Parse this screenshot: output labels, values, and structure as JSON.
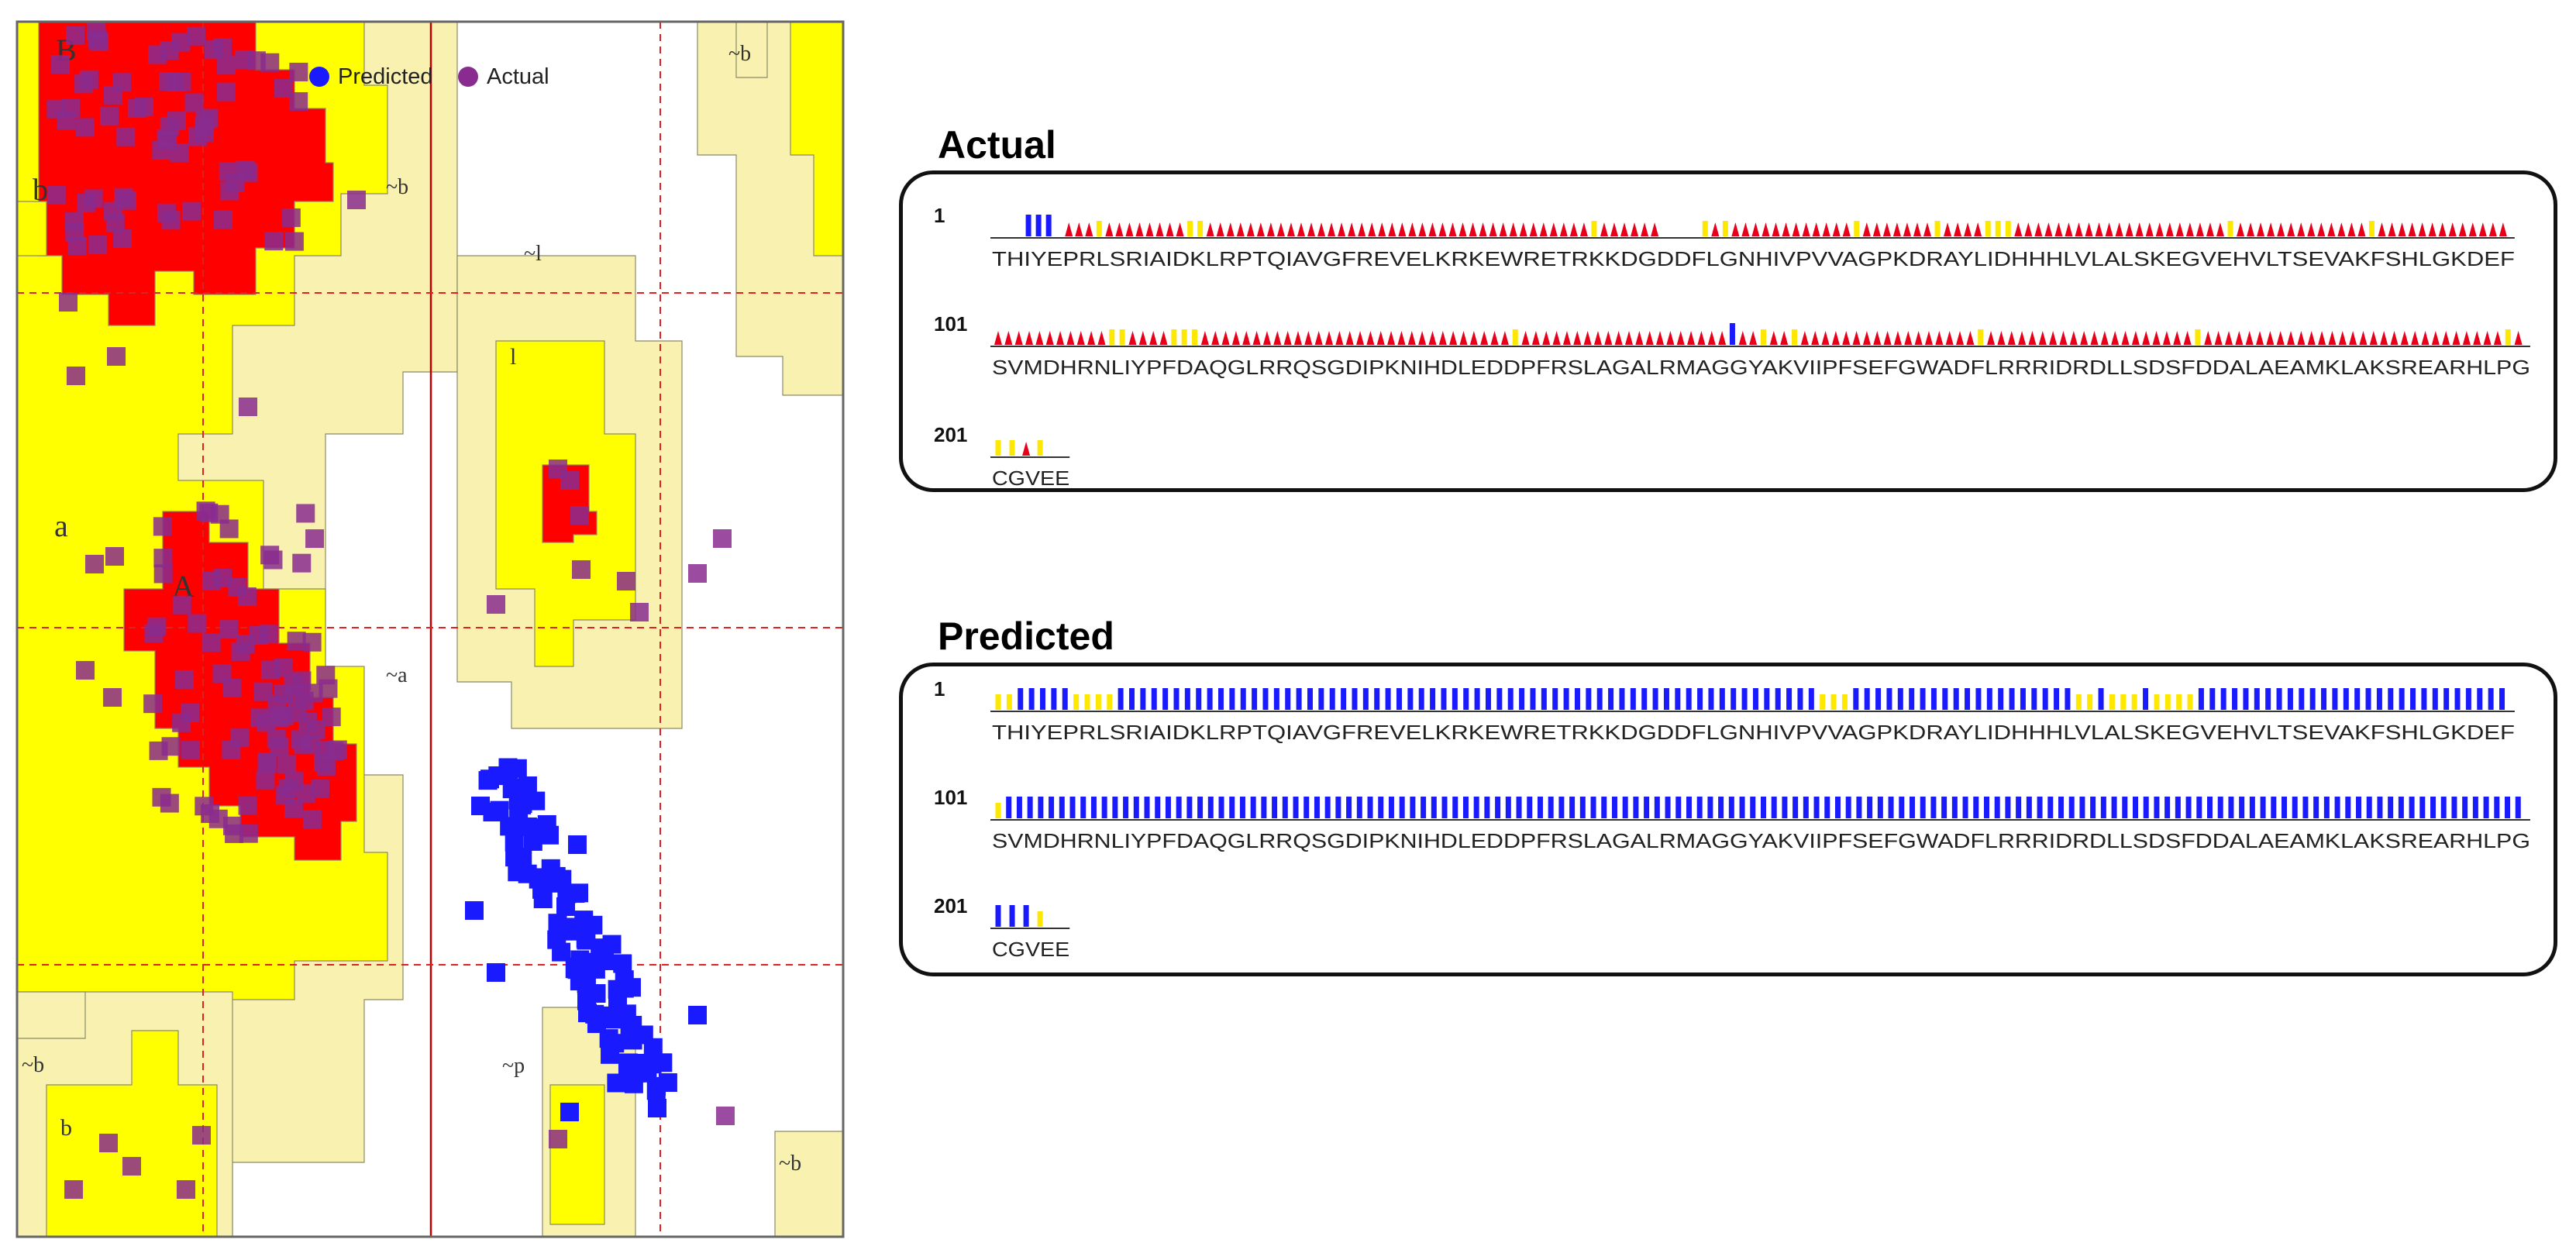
{
  "plot": {
    "legend": [
      {
        "label": "Predicted",
        "color": "#1a1aff"
      },
      {
        "label": "Actual",
        "color": "#8a2b8f"
      }
    ],
    "region_labels": [
      "B",
      "b",
      "~b",
      "~b",
      "~l",
      "l",
      "a",
      "A",
      "~a",
      "~b",
      "b",
      "~p",
      "~b"
    ]
  },
  "colors": {
    "core": "#ff0000",
    "allowed": "#ffff00",
    "generous": "#f8f1b0",
    "predicted": "#1a1aff",
    "actual": "#8a2b8f",
    "helix_bar": "#1a1aff",
    "other_bar": "#ffe800",
    "strand_triangle": "#e8001a"
  },
  "panels": {
    "actual": {
      "title": "Actual",
      "rows": [
        {
          "start": "1",
          "sequence": "THIYEPRLSRIAIDKLRPTQIAVGFREVELKRKEWRETRKKDGDDFLGNHIVPVVAGPKDRAYLIDHHHLVLALSKEGVEHVLTSEVAKFSHLGKDEF",
          "ss": "---HHH-EEEOEEEEEEEEOOEEEEEEEEEEEEEEEEEEEEEEEEEEEEEEEEEEEEEEOEEEEEE----OEOEEEEEEEEEEEEOEEEEEEEOEEEEOOOEEEEEEEEEEEEEEEEEEEEEOEEEEEEEEEEEEEOEEEEEEEEEEEEE"
        },
        {
          "start": "101",
          "sequence": "SVMDHRNLIYPFDAQGLRRQSGDIPKNIHDLEDDPFRSLAGALRMAGGYAKVIIPFSEFGWADFLRRRIDRDLLSDSFDDALAEAMKLAKSREARHLPG",
          "ss": "EEEEEEEEEEEOOEEEEOOOEEEEEEEEEEEEEEEEEEEEEEEEEEEEEEOEEEEEEEEEEEEEEEEEEEEHEEOEEOEEEEEEEEEEEEEEEEEOEEEEEEEEEEEEEEEEEEEEOEEEEEEEEEEEEEEEEEEEEEEEEEEEEEOE"
        },
        {
          "start": "201",
          "sequence": "CGVEE",
          "ss": "OOEO-"
        }
      ]
    },
    "predicted": {
      "title": "Predicted",
      "rows": [
        {
          "start": "1",
          "sequence": "THIYEPRLSRIAIDKLRPTQIAVGFREVELKRKEWRETRKKDGDDFLGNHIVPVVAGPKDRAYLIDHHHLVLALSKEGVEHVLTSEVAKFSHLGKDEF",
          "ss": "OOHHHHHOOOOHHHHHHHHHHHHHHHHHHHHHHHHHHHHHHHHHHHHHHHHHHHHHHHHHHHHHHHHHHHHHHHOOOHHHHHHHHHHHHHHHHHHHHOOHOOOHOOOOHHHHHHHHHHHHHHHHHHHHHHHHHHHH"
        },
        {
          "start": "101",
          "sequence": "SVMDHRNLIYPFDAQGLRRQSGDIPKNIHDLEDDPFRSLAGALRMAGGYAKVIIPFSEFGWADFLRRRIDRDLLSDSFDDALAEAMKLAKSREARHLPG",
          "ss": "OHHHHHHHHHHHHHHHHHHHHHHHHHHHHHHHHHHHHHHHHHHHHHHHHHHHHHHHHHHHHHHHHHHHHHHHHHHHHHHHHHHHHHHHHHHHHHHHHHHHHHHHHHHHHHHHHHHHHHHHHHHHHHHHHHHHHHHHHHHHHHHH"
        },
        {
          "start": "201",
          "sequence": "CGVEE",
          "ss": "HHHO-"
        }
      ]
    }
  }
}
